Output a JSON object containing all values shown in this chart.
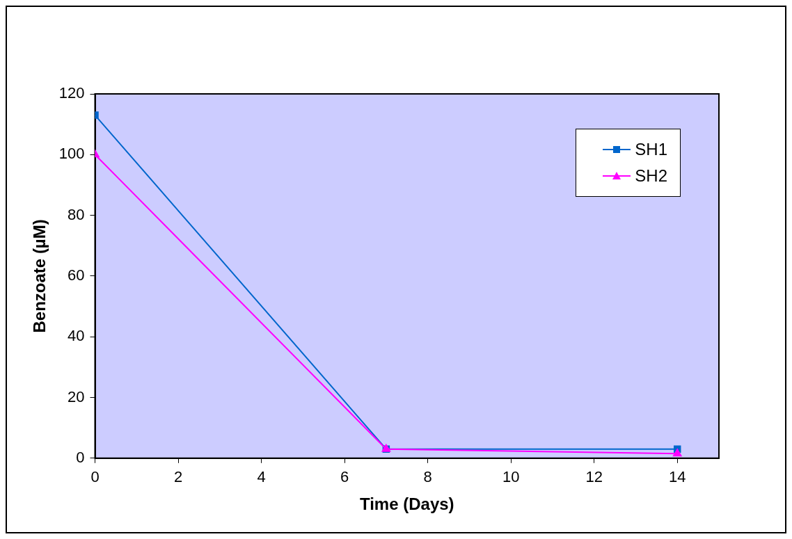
{
  "chart_data": {
    "type": "line",
    "xlabel": "Time (Days)",
    "ylabel": "Benzoate (µM)",
    "x": [
      0,
      7,
      14
    ],
    "series": [
      {
        "name": "SH1",
        "color": "#0066cc",
        "values": [
          113,
          3,
          3
        ],
        "marker": "square"
      },
      {
        "name": "SH2",
        "color": "#ff00ff",
        "values": [
          100,
          3,
          1.5
        ],
        "marker": "triangle"
      }
    ],
    "xlim": [
      0,
      15
    ],
    "xticks": [
      0,
      2,
      4,
      6,
      8,
      10,
      12,
      14
    ],
    "ylim": [
      0,
      120
    ],
    "yticks": [
      0,
      20,
      40,
      60,
      80,
      100,
      120
    ],
    "grid": false,
    "legend": "top right",
    "line_style": "solid"
  }
}
